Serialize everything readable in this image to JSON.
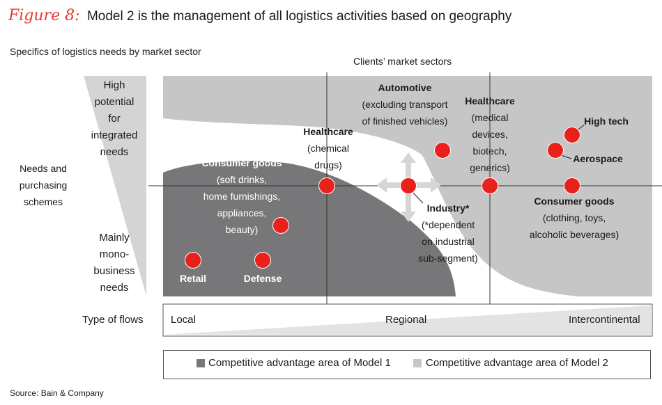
{
  "header": {
    "figure_label": "Figure 8:",
    "title": "Model 2 is the management of all logistics activities based on geography"
  },
  "subtitle": "Specifics of logistics needs by market sector",
  "column_header": "Clients’ market sectors",
  "y_axis": {
    "label": [
      "Needs and",
      "purchasing",
      "schemes"
    ],
    "top": [
      "High",
      "potential",
      "for",
      "integrated",
      "needs"
    ],
    "bottom": [
      "Mainly",
      "mono-",
      "business",
      "needs"
    ]
  },
  "flows": {
    "label": "Type of flows",
    "local": "Local",
    "regional": "Regional",
    "intercontinental": "Intercontinental"
  },
  "sectors": [
    {
      "title": "Automotive",
      "desc": [
        "(excluding transport",
        "of finished vehicles)"
      ]
    },
    {
      "title": "Healthcare",
      "desc": [
        "(chemical",
        "drugs)"
      ]
    },
    {
      "title": "Healthcare",
      "desc": [
        "(medical",
        "devices,",
        "biotech,",
        "generics)"
      ]
    },
    {
      "title": "High tech",
      "desc": []
    },
    {
      "title": "Aerospace",
      "desc": []
    },
    {
      "title": "Consumer goods",
      "desc": [
        "(soft drinks,",
        "home furnishings,",
        "appliances,",
        "beauty)"
      ]
    },
    {
      "title": "Industry*",
      "desc": [
        "(*dependent",
        "on industrial",
        "sub-segment)"
      ]
    },
    {
      "title": "Consumer goods",
      "desc": [
        "(clothing, toys,",
        "alcoholic beverages)"
      ]
    },
    {
      "title": "Retail",
      "desc": []
    },
    {
      "title": "Defense",
      "desc": []
    }
  ],
  "legend": {
    "model1": "Competitive advantage area of Model 1",
    "model2": "Competitive advantage area of Model 2"
  },
  "colors": {
    "model1_area": "#77777a",
    "model2_area": "#c6c6c6",
    "dot": "#e8221b",
    "figure_label": "#e03c31"
  },
  "source": "Source: Bain & Company"
}
